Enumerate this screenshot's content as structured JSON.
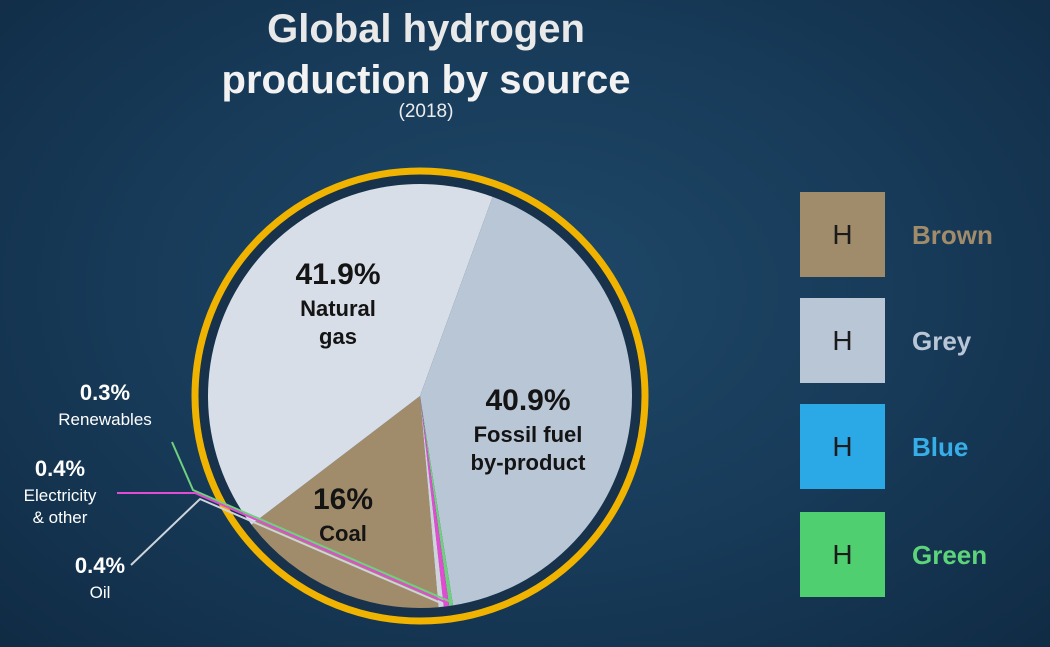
{
  "chart_data": {
    "type": "pie",
    "title_line1": "Global hydrogen",
    "title_line2": "production by source",
    "subtitle": "(2018)",
    "slices": [
      {
        "label": "Coal",
        "value_label": "16%",
        "value": 16,
        "color": "#a08c6b",
        "text_color": "#141414"
      },
      {
        "label": "Fossil fuel by-product",
        "label_lines": [
          "Fossil fuel",
          "by-product"
        ],
        "value_label": "40.9%",
        "value": 40.9,
        "color": "#d8dee8",
        "text_color": "#141414"
      },
      {
        "label": "Natural gas",
        "label_lines": [
          "Natural",
          "gas"
        ],
        "value_label": "41.9%",
        "value": 41.9,
        "color": "#b9c6d6",
        "text_color": "#141414"
      },
      {
        "label": "Renewables",
        "value_label": "0.3%",
        "value": 0.3,
        "color": "#6fd17e",
        "text_color": "#ffffff"
      },
      {
        "label": "Electricity & other",
        "label_lines": [
          "Electricity",
          "& other"
        ],
        "value_label": "0.4%",
        "value": 0.4,
        "color": "#e24bd3",
        "text_color": "#ffffff"
      },
      {
        "label": "Oil",
        "value_label": "0.4%",
        "value": 0.4,
        "color": "#cfd3da",
        "text_color": "#ffffff"
      }
    ],
    "ring_color": "#f0b400"
  },
  "legend": [
    {
      "letter": "H",
      "label": "Brown",
      "swatch": "#a08c6b",
      "label_color": "#a08c6b"
    },
    {
      "letter": "H",
      "label": "Grey",
      "swatch": "#b9c6d6",
      "label_color": "#b9c6d6"
    },
    {
      "letter": "H",
      "label": "Blue",
      "swatch": "#2ba8e6",
      "label_color": "#38aee8"
    },
    {
      "letter": "H",
      "label": "Green",
      "swatch": "#4fcf6f",
      "label_color": "#5dd47a"
    }
  ]
}
